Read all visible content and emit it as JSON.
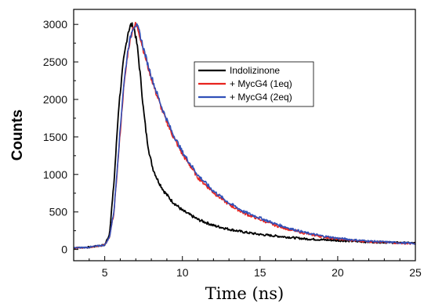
{
  "chart_data": {
    "type": "line",
    "title": "",
    "xlabel": "Time (ns)",
    "ylabel": "Counts",
    "xlim": [
      3,
      25
    ],
    "ylim": [
      -150,
      3200
    ],
    "x_ticks": [
      5,
      10,
      15,
      20,
      25
    ],
    "y_ticks": [
      0,
      500,
      1000,
      1500,
      2000,
      2500,
      3000
    ],
    "grid": false,
    "legend_position": "top-right",
    "series": [
      {
        "name": "Indolizinone",
        "color": "#000000",
        "x": [
          3,
          4,
          5,
          5.3,
          5.6,
          5.9,
          6.2,
          6.5,
          6.7,
          6.9,
          7.1,
          7.3,
          7.5,
          7.7,
          7.9,
          8.1,
          8.4,
          8.8,
          9.3,
          10,
          11,
          12,
          13,
          14,
          15,
          16,
          17,
          18,
          19,
          20,
          21,
          22,
          23,
          24,
          25
        ],
        "y": [
          20,
          30,
          60,
          200,
          900,
          1900,
          2500,
          2900,
          3000,
          2950,
          2700,
          2300,
          1850,
          1500,
          1250,
          1080,
          930,
          780,
          650,
          520,
          400,
          320,
          270,
          230,
          200,
          180,
          160,
          140,
          130,
          120,
          110,
          100,
          95,
          90,
          85
        ]
      },
      {
        "name": "+ MycG4 (1eq)",
        "color": "#e8231e",
        "x": [
          3,
          4,
          5,
          5.3,
          5.6,
          5.9,
          6.2,
          6.5,
          6.8,
          7.0,
          7.2,
          7.5,
          7.8,
          8.2,
          8.7,
          9.3,
          10,
          11,
          12,
          13,
          14,
          15,
          16,
          17,
          18,
          19,
          20,
          21,
          22,
          23,
          24,
          25
        ],
        "y": [
          20,
          30,
          60,
          150,
          500,
          1300,
          2100,
          2650,
          2950,
          3000,
          2900,
          2650,
          2420,
          2150,
          1850,
          1550,
          1270,
          960,
          760,
          600,
          480,
          400,
          320,
          260,
          210,
          170,
          140,
          120,
          105,
          95,
          85,
          75
        ]
      },
      {
        "name": "+ MycG4 (2eq)",
        "color": "#3050b8",
        "x": [
          3,
          4,
          5,
          5.3,
          5.6,
          5.9,
          6.2,
          6.5,
          6.8,
          7.0,
          7.2,
          7.5,
          7.8,
          8.2,
          8.7,
          9.3,
          10,
          11,
          12,
          13,
          14,
          15,
          16,
          17,
          18,
          19,
          20,
          21,
          22,
          23,
          24,
          25
        ],
        "y": [
          20,
          30,
          60,
          160,
          520,
          1350,
          2150,
          2680,
          2960,
          3000,
          2920,
          2680,
          2450,
          2180,
          1880,
          1580,
          1300,
          990,
          780,
          620,
          500,
          420,
          340,
          275,
          220,
          180,
          150,
          128,
          112,
          100,
          90,
          80
        ]
      }
    ]
  }
}
